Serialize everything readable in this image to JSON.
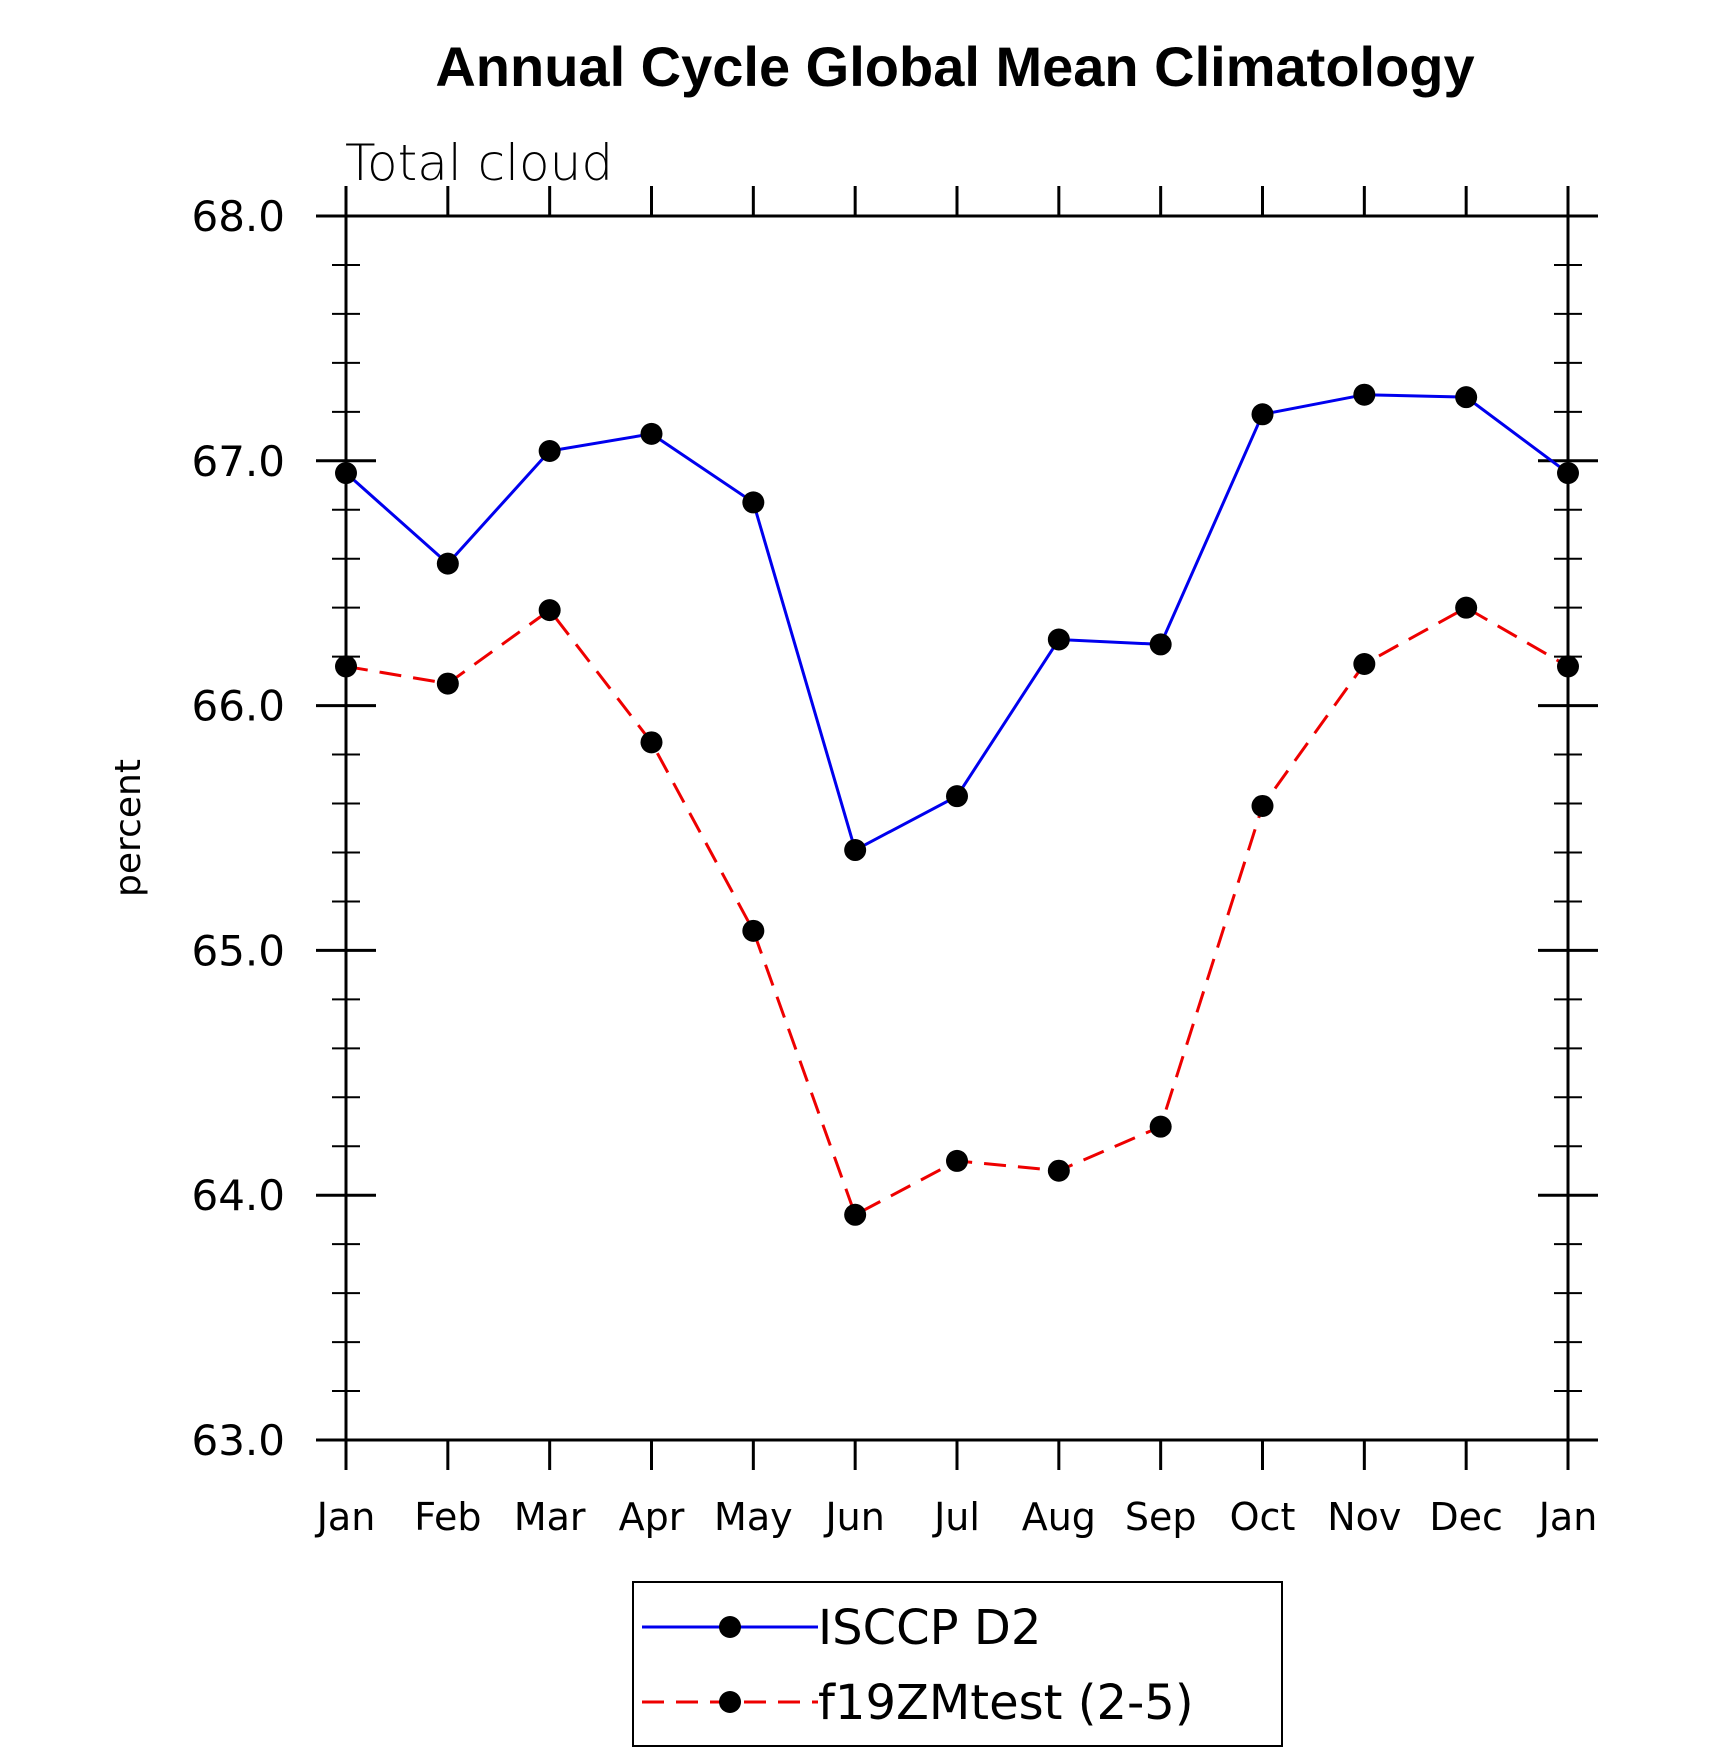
{
  "chart_data": {
    "type": "line",
    "title": "Annual Cycle Global Mean Climatology",
    "subtitle": "Total cloud",
    "xlabel": "",
    "ylabel": "percent",
    "categories": [
      "Jan",
      "Feb",
      "Mar",
      "Apr",
      "May",
      "Jun",
      "Jul",
      "Aug",
      "Sep",
      "Oct",
      "Nov",
      "Dec",
      "Jan"
    ],
    "ylim": [
      63.0,
      68.0
    ],
    "yticks": [
      "63.0",
      "64.0",
      "65.0",
      "66.0",
      "67.0",
      "68.0"
    ],
    "grid": false,
    "legend_position": "bottom-center",
    "series": [
      {
        "name": "ISCCP D2",
        "color": "#0000ee",
        "line_style": "solid",
        "marker": "filled-circle",
        "values": [
          66.95,
          66.58,
          67.04,
          67.11,
          66.83,
          65.41,
          65.63,
          66.27,
          66.25,
          67.19,
          67.27,
          67.26,
          66.95
        ]
      },
      {
        "name": "f19ZMtest (2-5)",
        "color": "#ee0000",
        "line_style": "dashed",
        "marker": "filled-circle",
        "values": [
          66.16,
          66.09,
          66.39,
          65.85,
          65.08,
          63.92,
          64.14,
          64.1,
          64.28,
          65.59,
          66.17,
          66.4,
          66.16
        ]
      }
    ]
  }
}
